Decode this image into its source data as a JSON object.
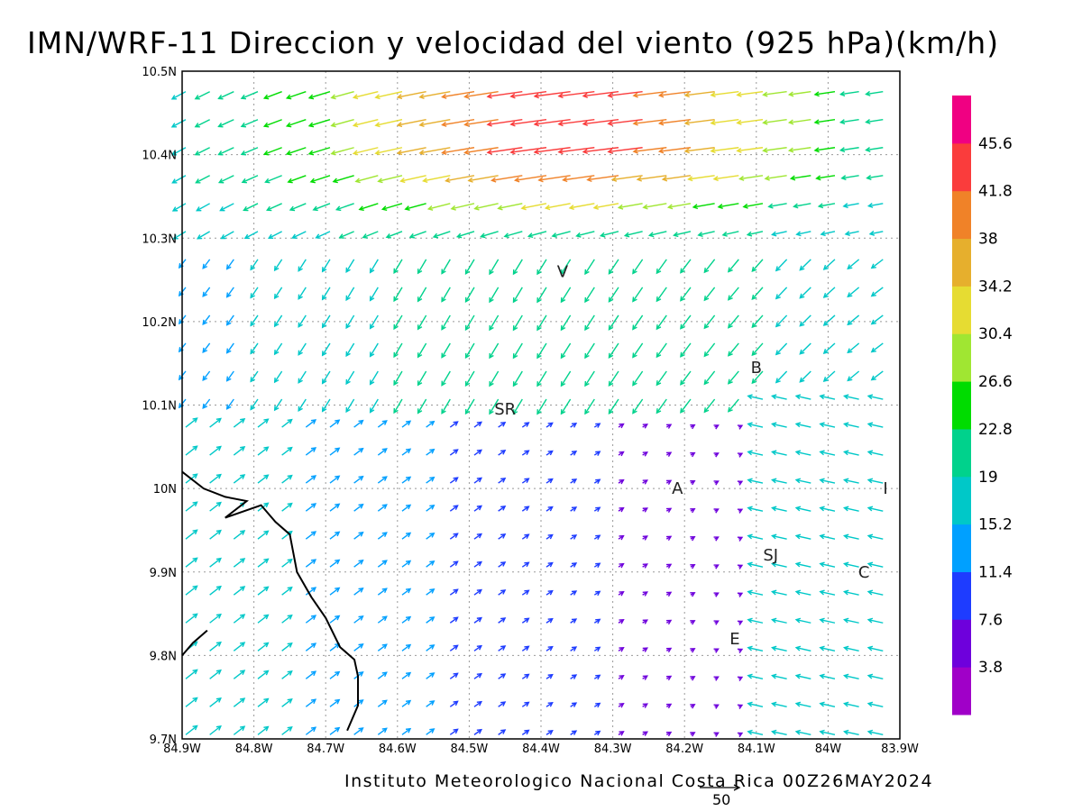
{
  "title": "IMN/WRF-11 Direccion y velocidad del viento (925 hPa)(km/h)",
  "credit": "Instituto Meteorologico Nacional Costa Rica 00Z26MAY2024",
  "reference_vector": {
    "label": "50",
    "value": 50,
    "units": "km/h"
  },
  "axes": {
    "lon_range": [
      -84.9,
      -83.9
    ],
    "lat_range": [
      9.7,
      10.5
    ],
    "x_ticks": [
      {
        "lon": -84.9,
        "label": "84.9W"
      },
      {
        "lon": -84.8,
        "label": "84.8W"
      },
      {
        "lon": -84.7,
        "label": "84.7W"
      },
      {
        "lon": -84.6,
        "label": "84.6W"
      },
      {
        "lon": -84.5,
        "label": "84.5W"
      },
      {
        "lon": -84.4,
        "label": "84.4W"
      },
      {
        "lon": -84.3,
        "label": "84.3W"
      },
      {
        "lon": -84.2,
        "label": "84.2W"
      },
      {
        "lon": -84.1,
        "label": "84.1W"
      },
      {
        "lon": -84.0,
        "label": "84W"
      },
      {
        "lon": -83.9,
        "label": "83.9W"
      }
    ],
    "y_ticks": [
      {
        "lat": 10.5,
        "label": "10.5N"
      },
      {
        "lat": 10.4,
        "label": "10.4N"
      },
      {
        "lat": 10.3,
        "label": "10.3N"
      },
      {
        "lat": 10.2,
        "label": "10.2N"
      },
      {
        "lat": 10.1,
        "label": "10.1N"
      },
      {
        "lat": 10.0,
        "label": "10N"
      },
      {
        "lat": 9.9,
        "label": "9.9N"
      },
      {
        "lat": 9.8,
        "label": "9.8N"
      },
      {
        "lat": 9.7,
        "label": "9.7N"
      }
    ]
  },
  "colorbar": {
    "colors": [
      "#a000c8",
      "#6e00dc",
      "#1e3cff",
      "#00a0ff",
      "#00c8c8",
      "#00d28c",
      "#00dc00",
      "#a0e632",
      "#e6dc32",
      "#e6af2d",
      "#f08228",
      "#fa3c3c",
      "#f00082"
    ],
    "labels": [
      "3.8",
      "7.6",
      "11.4",
      "15.2",
      "19",
      "22.8",
      "26.6",
      "30.4",
      "34.2",
      "38",
      "41.8",
      "45.6"
    ]
  },
  "places": [
    {
      "label": "V",
      "lon": -84.37,
      "lat": 10.26
    },
    {
      "label": "SR",
      "lon": -84.45,
      "lat": 10.095
    },
    {
      "label": "B",
      "lon": -84.1,
      "lat": 10.145
    },
    {
      "label": "A",
      "lon": -84.21,
      "lat": 10.0
    },
    {
      "label": "I",
      "lon": -83.92,
      "lat": 10.0
    },
    {
      "label": "SJ",
      "lon": -84.08,
      "lat": 9.92
    },
    {
      "label": "C",
      "lon": -83.95,
      "lat": 9.9
    },
    {
      "label": "E",
      "lon": -84.13,
      "lat": 9.82
    }
  ],
  "coastline": [
    [
      -84.9,
      10.02
    ],
    [
      -84.87,
      10.0
    ],
    [
      -84.84,
      9.99
    ],
    [
      -84.81,
      9.985
    ],
    [
      -84.84,
      9.965
    ],
    [
      -84.79,
      9.98
    ],
    [
      -84.77,
      9.96
    ],
    [
      -84.75,
      9.945
    ],
    [
      -84.74,
      9.9
    ],
    [
      -84.72,
      9.87
    ],
    [
      -84.7,
      9.845
    ],
    [
      -84.68,
      9.81
    ],
    [
      -84.66,
      9.795
    ],
    [
      -84.655,
      9.775
    ],
    [
      -84.655,
      9.74
    ],
    [
      -84.67,
      9.71
    ]
  ],
  "coastline_nicoya": [
    [
      -84.9,
      9.8
    ],
    [
      -84.885,
      9.815
    ],
    [
      -84.865,
      9.83
    ]
  ],
  "wind_grid": {
    "source": "WRF-11 925 hPa wind field, km/h, approximated",
    "lon_step": 0.025,
    "lat_step": 0.025
  }
}
